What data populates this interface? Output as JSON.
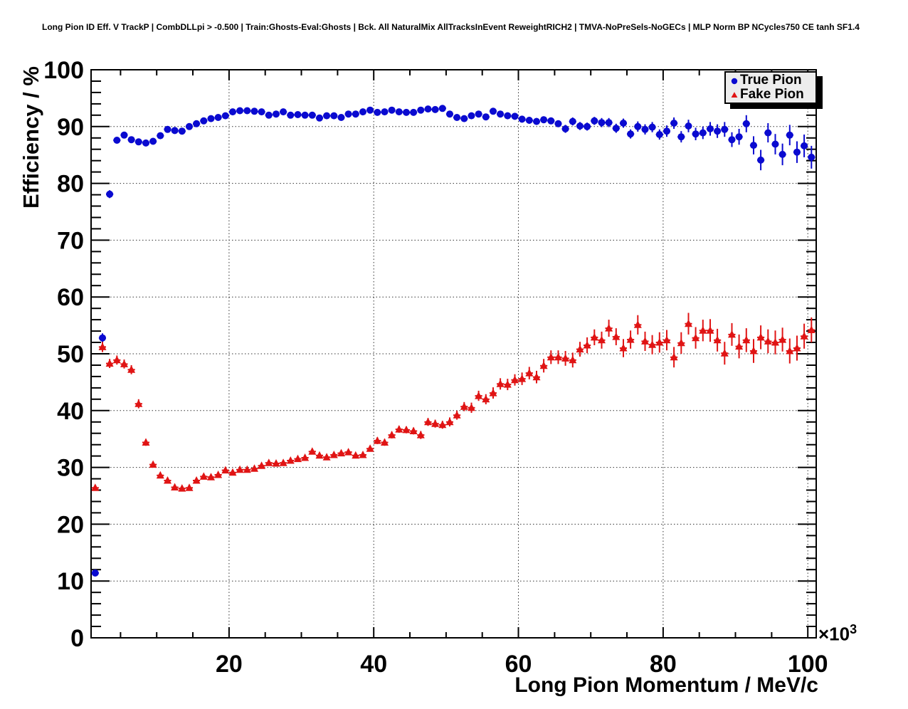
{
  "header": {
    "title": "Long Pion ID Eff. V TrackP | CombDLLpi > -0.500 | Train:Ghosts-Eval:Ghosts | Bck. All NaturalMix AllTracksInEvent ReweightRICH2 | TMVA-NoPreSels-NoGECs | MLP Norm BP NCycles750 CE tanh SF1.4"
  },
  "legend": {
    "entries": [
      {
        "label": "True Pion",
        "marker": "circle",
        "color": "#0a0ad0"
      },
      {
        "label": "Fake Pion",
        "marker": "triangle",
        "color": "#e01414"
      }
    ]
  },
  "chart_data": {
    "type": "scatter",
    "title": "Long Pion ID Eff. V TrackP | CombDLLpi > -0.500 | Train:Ghosts-Eval:Ghosts | Bck. All NaturalMix AllTracksInEvent ReweightRICH2 | TMVA-NoPreSels-NoGECs | MLP Norm BP NCycles750 CE tanh SF1.4",
    "xlabel": "Long Pion Momentum / MeV/c",
    "ylabel": "Efficiency / %",
    "x_scale_prefix": "×10",
    "x_scale_exp": "3",
    "x_units_factor": 1000,
    "xlim": [
      0.93,
      101.16
    ],
    "ylim": [
      0,
      100
    ],
    "x_major_ticks": [
      20,
      40,
      60,
      80,
      100
    ],
    "x_minor_step": 5,
    "y_major_ticks": [
      0,
      10,
      20,
      30,
      40,
      50,
      60,
      70,
      80,
      90,
      100
    ],
    "y_minor_step": 2,
    "grid": true,
    "legend_position": "top-right",
    "x": [
      1.5,
      2.5,
      3.5,
      4.5,
      5.5,
      6.5,
      7.5,
      8.5,
      9.5,
      10.5,
      11.5,
      12.5,
      13.5,
      14.5,
      15.5,
      16.5,
      17.5,
      18.5,
      19.5,
      20.5,
      21.5,
      22.5,
      23.5,
      24.5,
      25.5,
      26.5,
      27.5,
      28.5,
      29.5,
      30.5,
      31.5,
      32.5,
      33.5,
      34.5,
      35.5,
      36.5,
      37.5,
      38.5,
      39.5,
      40.5,
      41.5,
      42.5,
      43.5,
      44.5,
      45.5,
      46.5,
      47.5,
      48.5,
      49.5,
      50.5,
      51.5,
      52.5,
      53.5,
      54.5,
      55.5,
      56.5,
      57.5,
      58.5,
      59.5,
      60.5,
      61.5,
      62.5,
      63.5,
      64.5,
      65.5,
      66.5,
      67.5,
      68.5,
      69.5,
      70.5,
      71.5,
      72.5,
      73.5,
      74.5,
      75.5,
      76.5,
      77.5,
      78.5,
      79.5,
      80.5,
      81.5,
      82.5,
      83.5,
      84.5,
      85.5,
      86.5,
      87.5,
      88.5,
      89.5,
      90.5,
      91.5,
      92.5,
      93.5,
      94.5,
      95.5,
      96.5,
      97.5,
      98.5,
      99.5,
      100.5
    ],
    "xerr": 0.5,
    "series": [
      {
        "name": "True Pion",
        "marker": "circle",
        "color": "#0a0ad0",
        "y": [
          11.4,
          52.8,
          78.1,
          87.6,
          88.5,
          87.7,
          87.3,
          87.1,
          87.4,
          88.4,
          89.5,
          89.3,
          89.2,
          90.0,
          90.5,
          91.0,
          91.4,
          91.6,
          91.9,
          92.6,
          92.8,
          92.8,
          92.7,
          92.6,
          92.0,
          92.2,
          92.6,
          92.0,
          92.1,
          92.0,
          92.0,
          91.5,
          91.9,
          91.9,
          91.6,
          92.2,
          92.2,
          92.6,
          92.9,
          92.5,
          92.6,
          92.9,
          92.6,
          92.5,
          92.5,
          92.9,
          93.1,
          93.0,
          93.2,
          92.2,
          91.6,
          91.4,
          91.9,
          92.2,
          91.7,
          92.7,
          92.2,
          91.9,
          91.8,
          91.3,
          91.1,
          90.9,
          91.2,
          91.0,
          90.5,
          89.6,
          90.9,
          90.1,
          90.0,
          91.0,
          90.7,
          90.7,
          89.7,
          90.6,
          88.7,
          90.0,
          89.5,
          89.9,
          88.6,
          89.2,
          90.6,
          88.2,
          90.1,
          88.7,
          88.9,
          89.6,
          89.2,
          89.5,
          87.7,
          88.2,
          90.5,
          86.7,
          84.1,
          88.9,
          86.9,
          85.1,
          88.5,
          85.5,
          86.6,
          84.6
        ],
        "yerr": [
          0.5,
          0.8,
          0.7,
          0.5,
          0.5,
          0.5,
          0.5,
          0.5,
          0.5,
          0.5,
          0.5,
          0.5,
          0.5,
          0.4,
          0.4,
          0.4,
          0.4,
          0.4,
          0.4,
          0.4,
          0.4,
          0.4,
          0.4,
          0.4,
          0.4,
          0.4,
          0.4,
          0.4,
          0.4,
          0.4,
          0.4,
          0.4,
          0.4,
          0.4,
          0.4,
          0.4,
          0.4,
          0.4,
          0.4,
          0.4,
          0.5,
          0.5,
          0.5,
          0.5,
          0.5,
          0.5,
          0.5,
          0.5,
          0.5,
          0.5,
          0.5,
          0.5,
          0.5,
          0.5,
          0.5,
          0.6,
          0.6,
          0.6,
          0.6,
          0.6,
          0.6,
          0.6,
          0.6,
          0.6,
          0.6,
          0.7,
          0.7,
          0.7,
          0.7,
          0.7,
          0.8,
          0.8,
          0.8,
          0.8,
          0.8,
          0.9,
          0.9,
          0.9,
          0.9,
          1.0,
          1.0,
          1.0,
          1.1,
          1.1,
          1.1,
          1.2,
          1.2,
          1.3,
          1.3,
          1.4,
          1.5,
          1.6,
          1.8,
          1.7,
          1.8,
          1.9,
          1.8,
          1.9,
          2.0,
          2.0
        ]
      },
      {
        "name": "Fake Pion",
        "marker": "triangle",
        "color": "#e01414",
        "y": [
          26.4,
          51.2,
          48.3,
          48.9,
          48.2,
          47.2,
          41.2,
          34.4,
          30.5,
          28.6,
          27.7,
          26.5,
          26.3,
          26.4,
          27.7,
          28.4,
          28.3,
          28.7,
          29.5,
          29.1,
          29.6,
          29.6,
          29.8,
          30.3,
          30.8,
          30.7,
          30.8,
          31.2,
          31.5,
          31.7,
          32.8,
          32.1,
          31.8,
          32.2,
          32.5,
          32.7,
          32.1,
          32.2,
          33.3,
          34.7,
          34.4,
          35.7,
          36.7,
          36.6,
          36.4,
          35.7,
          38.0,
          37.7,
          37.5,
          38.0,
          39.2,
          40.7,
          40.5,
          42.6,
          42.0,
          43.1,
          44.7,
          44.6,
          45.4,
          45.6,
          46.6,
          45.9,
          47.9,
          49.4,
          49.4,
          49.2,
          48.9,
          50.8,
          51.5,
          52.9,
          52.4,
          54.5,
          53.0,
          51.0,
          52.5,
          55.1,
          52.2,
          51.6,
          52.0,
          52.4,
          49.4,
          51.9,
          55.3,
          52.8,
          54.1,
          54.1,
          52.4,
          50.1,
          53.4,
          51.3,
          52.4,
          50.5,
          52.9,
          52.2,
          52.0,
          52.5,
          50.5,
          51.0,
          53.1,
          54.2
        ],
        "yerr": [
          0.5,
          0.9,
          0.8,
          0.8,
          0.8,
          0.8,
          0.8,
          0.6,
          0.5,
          0.5,
          0.5,
          0.4,
          0.4,
          0.4,
          0.4,
          0.4,
          0.4,
          0.4,
          0.4,
          0.4,
          0.4,
          0.4,
          0.4,
          0.4,
          0.4,
          0.4,
          0.4,
          0.4,
          0.4,
          0.5,
          0.5,
          0.5,
          0.5,
          0.5,
          0.5,
          0.5,
          0.5,
          0.5,
          0.5,
          0.6,
          0.6,
          0.6,
          0.6,
          0.6,
          0.6,
          0.7,
          0.7,
          0.7,
          0.7,
          0.8,
          0.8,
          0.8,
          0.9,
          0.9,
          0.9,
          1.0,
          1.0,
          1.0,
          1.0,
          1.1,
          1.1,
          1.1,
          1.2,
          1.2,
          1.2,
          1.3,
          1.3,
          1.3,
          1.4,
          1.4,
          1.5,
          1.5,
          1.5,
          1.6,
          1.6,
          1.7,
          1.7,
          1.7,
          1.8,
          1.8,
          1.8,
          1.9,
          1.9,
          1.9,
          1.9,
          2.0,
          2.0,
          2.0,
          2.0,
          2.1,
          2.1,
          2.1,
          2.1,
          2.1,
          2.1,
          2.1,
          2.2,
          2.2,
          2.2,
          2.2
        ]
      }
    ]
  }
}
